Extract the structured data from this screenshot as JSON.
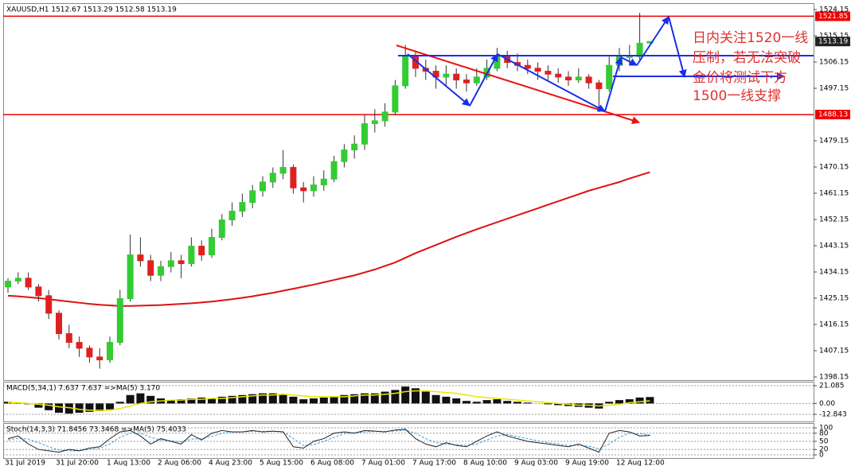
{
  "chart_data": {
    "type": "candlestick",
    "title": "XAUUSD,H1  1512.67 1513.29 1512.58 1513.19",
    "categories": [
      "31 Jul 2019",
      null,
      null,
      null,
      null,
      "31 Jul 20:00",
      null,
      null,
      null,
      null,
      "1 Aug 13:00",
      null,
      null,
      null,
      null,
      "2 Aug 06:00",
      null,
      null,
      null,
      null,
      "4 Aug 23:00",
      null,
      null,
      null,
      null,
      "5 Aug 15:00",
      null,
      null,
      null,
      null,
      "6 Aug 08:00",
      null,
      null,
      null,
      null,
      "7 Aug 01:00",
      null,
      null,
      null,
      null,
      "7 Aug 17:00",
      null,
      null,
      null,
      null,
      "8 Aug 10:00",
      null,
      null,
      null,
      null,
      "9 Aug 03:00",
      null,
      null,
      null,
      null,
      "9 Aug 19:00",
      null,
      null,
      null,
      null,
      "12 Aug 12:00",
      null,
      null,
      null
    ],
    "open": [
      1429,
      1431,
      1432,
      1429,
      1426,
      1420,
      1413,
      1410,
      1408,
      1405,
      1404,
      1410,
      1425,
      1440,
      1438,
      1433,
      1436,
      1438,
      1437,
      1443,
      1440,
      1446,
      1452,
      1455,
      1458,
      1462,
      1465,
      1468,
      1470,
      1463,
      1462,
      1464,
      1466,
      1472,
      1476,
      1478,
      1485,
      1486,
      1489,
      1498,
      1508,
      1504,
      1503,
      1501,
      1502,
      1500,
      1499,
      1501,
      1504,
      1508,
      1506,
      1505,
      1504,
      1503,
      1502,
      1501,
      1500,
      1501,
      1499,
      1497,
      1505,
      1508,
      1508,
      1512.67
    ],
    "high": [
      1432,
      1434,
      1434,
      1430,
      1428,
      1421,
      1416,
      1412,
      1409,
      1408,
      1412,
      1428,
      1447,
      1446,
      1440,
      1438,
      1441,
      1440,
      1446,
      1445,
      1449,
      1454,
      1458,
      1461,
      1464,
      1467,
      1470,
      1476,
      1471,
      1465,
      1467,
      1469,
      1474,
      1478,
      1481,
      1488,
      1490,
      1492,
      1500,
      1512,
      1510,
      1507,
      1505,
      1505,
      1504,
      1502,
      1504,
      1507,
      1511,
      1510,
      1509,
      1507,
      1506,
      1505,
      1504,
      1503,
      1504,
      1502,
      1500,
      1508,
      1511,
      1512,
      1523,
      1513.29
    ],
    "low": [
      1427,
      1430,
      1428,
      1424,
      1418,
      1411,
      1408,
      1405,
      1403,
      1401,
      1403,
      1409,
      1424,
      1436,
      1431,
      1431,
      1434,
      1432,
      1436,
      1438,
      1439,
      1445,
      1450,
      1453,
      1456,
      1460,
      1463,
      1466,
      1461,
      1458,
      1460,
      1462,
      1465,
      1470,
      1473,
      1476,
      1482,
      1484,
      1488,
      1497,
      1501,
      1500,
      1497,
      1498,
      1497,
      1496,
      1498,
      1500,
      1503,
      1504,
      1503,
      1502,
      1500,
      1500,
      1499,
      1498,
      1499,
      1497,
      1489,
      1496,
      1503,
      1505,
      1507,
      1512.58
    ],
    "close": [
      1431,
      1432,
      1429,
      1426,
      1420,
      1413,
      1410,
      1408,
      1405,
      1404,
      1410,
      1425,
      1440,
      1438,
      1433,
      1436,
      1438,
      1437,
      1443,
      1440,
      1446,
      1452,
      1455,
      1458,
      1462,
      1465,
      1468,
      1470,
      1463,
      1462,
      1464,
      1466,
      1472,
      1476,
      1478,
      1485,
      1486,
      1489,
      1498,
      1508,
      1504,
      1503,
      1501,
      1502,
      1500,
      1499,
      1501,
      1504,
      1508,
      1506,
      1505,
      1504,
      1503,
      1502,
      1501,
      1500,
      1501,
      1499,
      1497,
      1505,
      1508,
      1508,
      1512.6,
      1513.19
    ],
    "up_color": "#33cc33",
    "down_color": "#e02020",
    "ma": {
      "color": "#dd1111",
      "values": [
        1426,
        1425.8,
        1425.5,
        1425.2,
        1424.8,
        1424.4,
        1424,
        1423.6,
        1423.2,
        1422.9,
        1422.7,
        1422.5,
        1422.5,
        1422.6,
        1422.7,
        1422.8,
        1423,
        1423.2,
        1423.4,
        1423.7,
        1424,
        1424.4,
        1424.8,
        1425.3,
        1425.8,
        1426.4,
        1427,
        1427.7,
        1428.4,
        1429.1,
        1429.8,
        1430.6,
        1431.4,
        1432.2,
        1433,
        1434,
        1435,
        1436.2,
        1437.4,
        1439,
        1440.6,
        1442,
        1443.4,
        1444.8,
        1446.2,
        1447.5,
        1448.8,
        1450,
        1451.2,
        1452.4,
        1453.6,
        1454.8,
        1456,
        1457.2,
        1458.4,
        1459.6,
        1460.8,
        1462,
        1463,
        1464,
        1465,
        1466.2,
        1467.3,
        1468.4
      ]
    },
    "hlines": [
      1521.85,
      1488.13
    ],
    "hline_color": "#ee0000",
    "ylim": [
      1397.06,
      1526.06
    ],
    "yticks": [
      1524.15,
      1515.15,
      1506.15,
      1497.15,
      1479.15,
      1470.15,
      1461.15,
      1452.15,
      1443.15,
      1434.15,
      1425.15,
      1416.15,
      1407.15,
      1398.15
    ],
    "annotation": [
      "日内关注1520一线",
      "压制，若无法突破",
      "金价将测试下方",
      "1500一线支撑"
    ],
    "macd": {
      "title": "MACD(5,34,1) 7.637 7.637  =>MA(5) 3.170",
      "ylim": [
        -21.33,
        24.855
      ],
      "yticks": [
        21.085,
        {
          "value": 0,
          "label": "0.00"
        },
        -12.843
      ],
      "hist_color": "#111111",
      "signal_color": "#e8e800",
      "values": [
        2,
        1,
        -1,
        -5,
        -8,
        -11,
        -12,
        -11,
        -10,
        -9,
        -7,
        2,
        10,
        12,
        9,
        6,
        4,
        5,
        6,
        7,
        6,
        8,
        9,
        10,
        11,
        12,
        12,
        11,
        8,
        5,
        6,
        7,
        8,
        10,
        11,
        12,
        12,
        14,
        16,
        20,
        18,
        14,
        10,
        8,
        6,
        3,
        2,
        4,
        5,
        3,
        2,
        1,
        0,
        -1,
        -2,
        -3,
        -4,
        -5,
        -6,
        2,
        4,
        5,
        7,
        7.637
      ],
      "signal": [
        1,
        1,
        0,
        -1,
        -2,
        -4,
        -5,
        -7,
        -8,
        -8,
        -8,
        -6,
        -3,
        0,
        2,
        3,
        4,
        4,
        5,
        5,
        6,
        6,
        7,
        8,
        9,
        10,
        10,
        11,
        10,
        9,
        8,
        8,
        8,
        8,
        9,
        10,
        10,
        11,
        12,
        14,
        15,
        15,
        14,
        13,
        12,
        10,
        8,
        7,
        6,
        5,
        4,
        3,
        2,
        1,
        0,
        -1,
        -2,
        -2,
        -3,
        -2,
        -1,
        1,
        2,
        3.17
      ]
    },
    "stoch": {
      "title": "Stoch(14,3,3) 71.8456 73.3468  =>MA(5) 75.4033",
      "ylim": [
        -11.8,
        114.7
      ],
      "yticks": [
        100,
        80,
        50,
        20,
        0
      ],
      "main_color": "#222222",
      "signal_color": "#3aa0e0",
      "main": [
        60,
        70,
        40,
        20,
        15,
        10,
        20,
        15,
        25,
        30,
        60,
        85,
        90,
        70,
        40,
        60,
        50,
        40,
        75,
        55,
        80,
        90,
        85,
        85,
        90,
        85,
        88,
        85,
        30,
        25,
        50,
        60,
        80,
        85,
        80,
        90,
        88,
        85,
        92,
        95,
        60,
        40,
        30,
        45,
        35,
        30,
        50,
        70,
        85,
        70,
        60,
        50,
        45,
        40,
        35,
        30,
        40,
        25,
        10,
        80,
        90,
        85,
        70,
        71.8456
      ],
      "signal": [
        55,
        62,
        58,
        45,
        30,
        18,
        15,
        15,
        20,
        25,
        40,
        65,
        80,
        80,
        65,
        55,
        52,
        48,
        58,
        60,
        68,
        80,
        85,
        85,
        87,
        87,
        87,
        86,
        60,
        35,
        38,
        50,
        65,
        78,
        82,
        85,
        87,
        87,
        88,
        92,
        80,
        60,
        45,
        40,
        38,
        35,
        40,
        55,
        70,
        75,
        68,
        60,
        52,
        45,
        40,
        35,
        35,
        32,
        22,
        40,
        65,
        80,
        78,
        73.3468
      ]
    }
  }
}
